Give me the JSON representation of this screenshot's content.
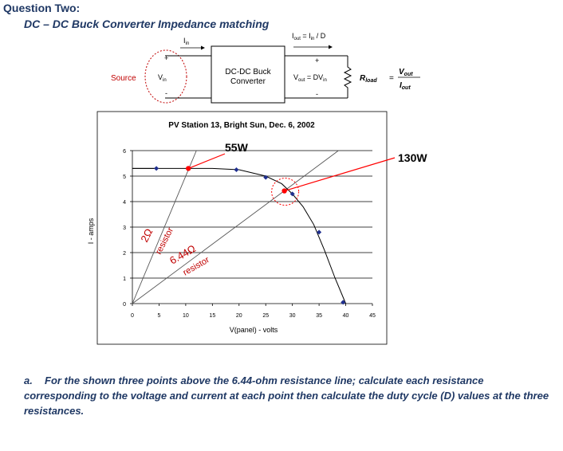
{
  "heading": "Question Two:",
  "subheading": "DC – DC Buck Converter Impedance matching",
  "circuit": {
    "source_label": "Source",
    "vin_label": "V",
    "vin_sub": "in",
    "iin_label": "I",
    "iin_sub": "in",
    "converter_line1": "DC-DC Buck",
    "converter_line2": "Converter",
    "iout_eq": "I",
    "iout_eq_sub1": "out",
    "iout_eq_rest": " = I",
    "iout_eq_sub2": "in",
    "iout_eq_tail": " / D",
    "vout_eq": "V",
    "vout_eq_sub1": "out",
    "vout_eq_rest": " = DV",
    "vout_eq_sub2": "in",
    "plus": "+",
    "minus": "-",
    "rload_label": "R",
    "rload_sub": "load",
    "equals": "=",
    "vout_num": "V",
    "vout_num_sub": "out",
    "iout_den": "I",
    "iout_den_sub": "out"
  },
  "chart_data": {
    "type": "line",
    "title": "PV Station 13, Bright Sun, Dec. 6, 2002",
    "xlabel": "V(panel) - volts",
    "ylabel": "I - amps",
    "xlim": [
      0,
      45
    ],
    "ylim": [
      0,
      6
    ],
    "xticks": [
      0,
      5,
      10,
      15,
      20,
      25,
      30,
      35,
      40,
      45
    ],
    "yticks": [
      0,
      1,
      2,
      3,
      4,
      5,
      6
    ],
    "iv_curve": {
      "x": [
        0,
        5,
        10,
        15,
        20,
        25,
        28,
        30,
        32,
        34,
        36,
        38,
        40
      ],
      "y": [
        5.3,
        5.3,
        5.3,
        5.3,
        5.25,
        5.0,
        4.7,
        4.3,
        3.8,
        3.1,
        2.1,
        1.0,
        0
      ]
    },
    "markers": {
      "x": [
        4.5,
        19.5,
        25,
        30,
        35,
        39.5
      ],
      "y": [
        5.3,
        5.25,
        4.95,
        4.3,
        2.8,
        0.05
      ]
    },
    "resistor_lines": [
      {
        "label": "2Ω",
        "sublabel": "resistor",
        "slope": 0.5
      },
      {
        "label": "6.44Ω",
        "sublabel": "resistor",
        "slope": 0.1553
      }
    ],
    "operating_points": [
      {
        "x": 10.5,
        "y": 5.3
      },
      {
        "x": 28.5,
        "y": 4.42
      }
    ],
    "annotations": {
      "p55": "55W",
      "p130": "130W"
    }
  },
  "question": {
    "label": "a.",
    "text": "For the shown three points above the 6.44-ohm resistance line; calculate each resistance corresponding to the voltage and current at each point then calculate the duty cycle (D) values at the three resistances."
  }
}
